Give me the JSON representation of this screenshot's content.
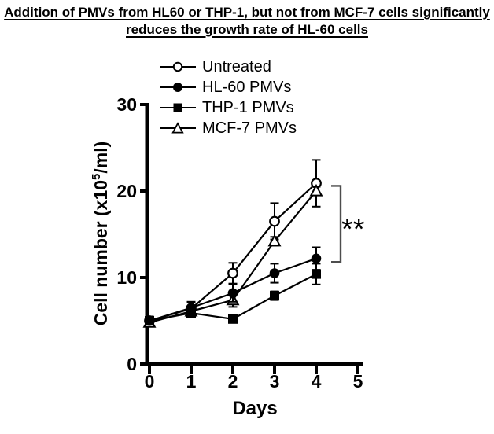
{
  "title": {
    "line1": "Addition of PMVs from HL60 or THP-1, but not from MCF-7 cells significantly",
    "line2": "reduces the growth rate of HL-60 cells"
  },
  "axes": {
    "x_label": "Days",
    "y_label_prefix": "Cell number (x10",
    "y_label_sup": "5",
    "y_label_suffix": "/ml)"
  },
  "colors": {
    "ink": "#000000",
    "bracket": "#4d4d4d"
  },
  "chart_data": {
    "type": "line",
    "title": "Addition of PMVs from HL60 or THP-1, but not from MCF-7 cells significantly reduces the growth rate of HL-60 cells",
    "xlabel": "Days",
    "ylabel": "Cell number (x10^5/ml)",
    "x": [
      0,
      1,
      2,
      3,
      4
    ],
    "xticks": [
      0,
      1,
      2,
      3,
      4,
      5
    ],
    "yticks": [
      0,
      10,
      20,
      30
    ],
    "xlim": [
      0,
      5
    ],
    "ylim": [
      0,
      30
    ],
    "grid": false,
    "legend_position": "top",
    "series": [
      {
        "name": "Untreated",
        "marker": "circle-open",
        "values": [
          5.0,
          6.4,
          10.5,
          16.5,
          20.9
        ],
        "errors": [
          0.5,
          0.8,
          1.2,
          2.1,
          2.7
        ]
      },
      {
        "name": "HL-60 PMVs",
        "marker": "circle-filled",
        "values": [
          5.0,
          6.5,
          8.2,
          10.5,
          12.2
        ],
        "errors": [
          0.4,
          0.6,
          1.0,
          1.1,
          1.3
        ]
      },
      {
        "name": "THP-1 PMVs",
        "marker": "square-filled",
        "values": [
          5.0,
          5.9,
          5.2,
          7.9,
          10.4
        ],
        "errors": [
          0.4,
          0.5,
          0.4,
          0.5,
          1.2
        ]
      },
      {
        "name": "MCF-7 PMVs",
        "marker": "triangle-open",
        "values": [
          4.8,
          6.1,
          7.4,
          14.2,
          20.0
        ],
        "errors": [
          0.4,
          0.5,
          0.8,
          0.5,
          0.5
        ]
      }
    ],
    "annotation": {
      "label": "**",
      "day": 4,
      "top_value": 20.6,
      "bottom_value": 11.8,
      "compares": [
        "Untreated",
        "HL-60 PMVs"
      ]
    }
  }
}
